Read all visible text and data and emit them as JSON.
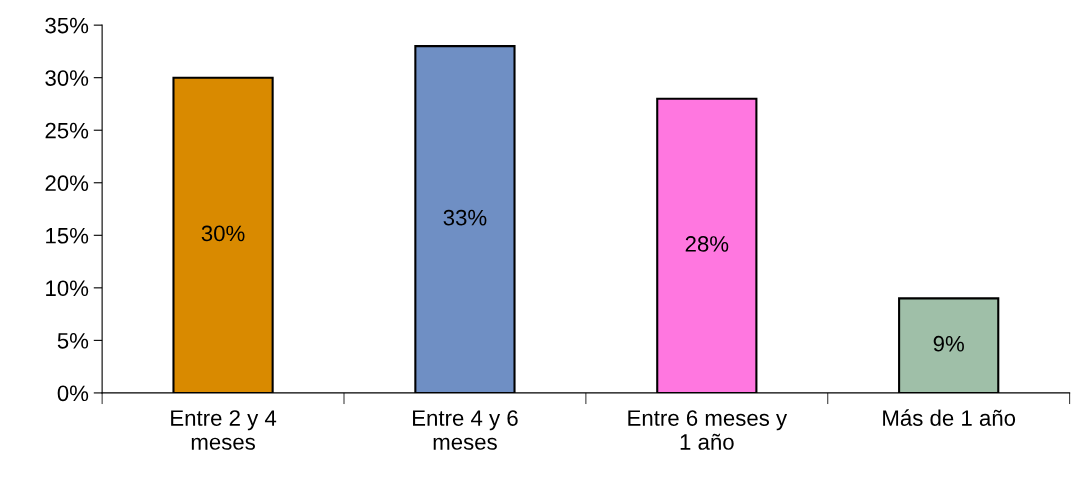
{
  "chart_data": {
    "type": "bar",
    "categories": [
      "Entre 2 y 4\nmeses",
      "Entre 4 y 6\nmeses",
      "Entre 6 meses y\n1 año",
      "Más de 1 año"
    ],
    "values": [
      30,
      33,
      28,
      9
    ],
    "value_labels": [
      "30%",
      "33%",
      "28%",
      "9%"
    ],
    "colors": [
      "#d98a00",
      "#6f8fc4",
      "#ff77e0",
      "#9fbfa8"
    ],
    "ylim": [
      0,
      35
    ],
    "yticks": [
      {
        "value": 0,
        "label": "0%"
      },
      {
        "value": 5,
        "label": "5%"
      },
      {
        "value": 10,
        "label": "10%"
      },
      {
        "value": 15,
        "label": "15%"
      },
      {
        "value": 20,
        "label": "20%"
      },
      {
        "value": 25,
        "label": "25%"
      },
      {
        "value": 30,
        "label": "30%"
      },
      {
        "value": 35,
        "label": "35%"
      }
    ],
    "grid": false,
    "legend": false
  }
}
